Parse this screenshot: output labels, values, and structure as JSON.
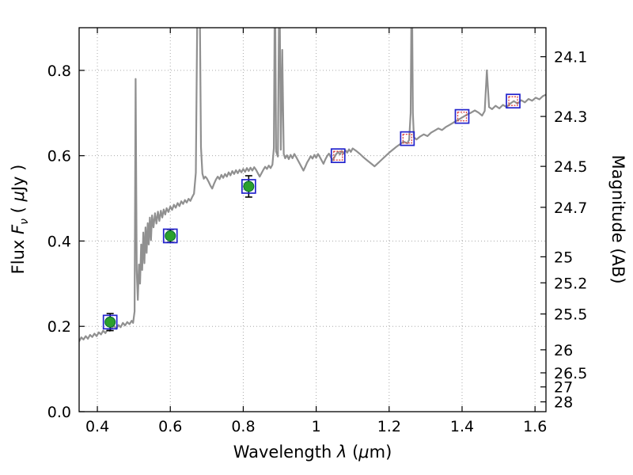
{
  "chart_data": {
    "type": "line+scatter",
    "title": "",
    "xlabel": "Wavelength λ (μm)",
    "ylabel_left": "Flux Fν ( μJy )",
    "ylabel_right": "Magnitude (AB)",
    "xlabel_parts": [
      "Wavelength ",
      "λ",
      " (",
      "μ",
      "m)"
    ],
    "ylabel_left_parts": [
      "Flux ",
      "F",
      "ν",
      " ( ",
      "μ",
      "Jy )"
    ],
    "xlim": [
      0.35,
      1.63
    ],
    "ylim": [
      0.0,
      0.9
    ],
    "grid": "dotted",
    "grid_color": "#aaaaaa",
    "frame_color": "#000000",
    "x_ticks": {
      "values": [
        0.4,
        0.6,
        0.8,
        1.0,
        1.2,
        1.4,
        1.6
      ],
      "labels": [
        "0.4",
        "0.6",
        "0.8",
        "1",
        "1.2",
        "1.4",
        "1.6"
      ]
    },
    "y_ticks_left": {
      "values": [
        0.0,
        0.2,
        0.4,
        0.6,
        0.8
      ],
      "labels": [
        "0.0",
        "0.2",
        "0.4",
        "0.6",
        "0.8"
      ]
    },
    "y_ticks_right": {
      "labels": [
        "24.1",
        "24.3",
        "24.5",
        "24.7",
        "25",
        "25.2",
        "25.5",
        "26",
        "26.5",
        "27",
        "28"
      ],
      "magnitudes": [
        24.1,
        24.3,
        24.5,
        24.7,
        25.0,
        25.2,
        25.5,
        26.0,
        26.5,
        27.0,
        28.0
      ],
      "flux_positions": [
        0.832,
        0.692,
        0.575,
        0.479,
        0.363,
        0.302,
        0.229,
        0.145,
        0.091,
        0.058,
        0.023
      ]
    },
    "spectrum": {
      "name": "model spectrum",
      "color": "#909090",
      "width": 2.2,
      "points": [
        [
          0.35,
          0.165
        ],
        [
          0.356,
          0.174
        ],
        [
          0.362,
          0.169
        ],
        [
          0.368,
          0.177
        ],
        [
          0.374,
          0.171
        ],
        [
          0.38,
          0.18
        ],
        [
          0.386,
          0.175
        ],
        [
          0.392,
          0.183
        ],
        [
          0.398,
          0.177
        ],
        [
          0.404,
          0.186
        ],
        [
          0.41,
          0.181
        ],
        [
          0.416,
          0.19
        ],
        [
          0.422,
          0.184
        ],
        [
          0.428,
          0.193
        ],
        [
          0.434,
          0.189
        ],
        [
          0.44,
          0.197
        ],
        [
          0.446,
          0.201
        ],
        [
          0.452,
          0.194
        ],
        [
          0.458,
          0.203
        ],
        [
          0.464,
          0.198
        ],
        [
          0.47,
          0.208
        ],
        [
          0.476,
          0.202
        ],
        [
          0.482,
          0.21
        ],
        [
          0.488,
          0.205
        ],
        [
          0.494,
          0.213
        ],
        [
          0.498,
          0.208
        ],
        [
          0.502,
          0.235
        ],
        [
          0.505,
          0.78
        ],
        [
          0.508,
          0.33
        ],
        [
          0.511,
          0.262
        ],
        [
          0.514,
          0.345
        ],
        [
          0.517,
          0.3
        ],
        [
          0.52,
          0.392
        ],
        [
          0.523,
          0.332
        ],
        [
          0.526,
          0.42
        ],
        [
          0.529,
          0.348
        ],
        [
          0.532,
          0.432
        ],
        [
          0.535,
          0.372
        ],
        [
          0.538,
          0.442
        ],
        [
          0.541,
          0.392
        ],
        [
          0.544,
          0.455
        ],
        [
          0.547,
          0.402
        ],
        [
          0.55,
          0.46
        ],
        [
          0.554,
          0.432
        ],
        [
          0.558,
          0.465
        ],
        [
          0.562,
          0.441
        ],
        [
          0.566,
          0.469
        ],
        [
          0.57,
          0.447
        ],
        [
          0.574,
          0.471
        ],
        [
          0.578,
          0.455
        ],
        [
          0.582,
          0.474
        ],
        [
          0.586,
          0.462
        ],
        [
          0.59,
          0.477
        ],
        [
          0.595,
          0.468
        ],
        [
          0.6,
          0.481
        ],
        [
          0.605,
          0.473
        ],
        [
          0.61,
          0.485
        ],
        [
          0.615,
          0.478
        ],
        [
          0.62,
          0.489
        ],
        [
          0.625,
          0.482
        ],
        [
          0.63,
          0.493
        ],
        [
          0.635,
          0.487
        ],
        [
          0.64,
          0.496
        ],
        [
          0.645,
          0.49
        ],
        [
          0.65,
          0.499
        ],
        [
          0.655,
          0.494
        ],
        [
          0.66,
          0.503
        ],
        [
          0.665,
          0.511
        ],
        [
          0.67,
          0.56
        ],
        [
          0.674,
          0.93
        ],
        [
          0.678,
          1.05
        ],
        [
          0.681,
          0.93
        ],
        [
          0.684,
          0.62
        ],
        [
          0.688,
          0.558
        ],
        [
          0.692,
          0.546
        ],
        [
          0.696,
          0.551
        ],
        [
          0.7,
          0.547
        ],
        [
          0.705,
          0.539
        ],
        [
          0.71,
          0.53
        ],
        [
          0.715,
          0.523
        ],
        [
          0.72,
          0.534
        ],
        [
          0.725,
          0.544
        ],
        [
          0.73,
          0.551
        ],
        [
          0.735,
          0.545
        ],
        [
          0.74,
          0.555
        ],
        [
          0.745,
          0.548
        ],
        [
          0.75,
          0.557
        ],
        [
          0.755,
          0.551
        ],
        [
          0.76,
          0.561
        ],
        [
          0.765,
          0.554
        ],
        [
          0.77,
          0.564
        ],
        [
          0.775,
          0.557
        ],
        [
          0.78,
          0.566
        ],
        [
          0.785,
          0.559
        ],
        [
          0.79,
          0.567
        ],
        [
          0.795,
          0.561
        ],
        [
          0.8,
          0.569
        ],
        [
          0.805,
          0.562
        ],
        [
          0.81,
          0.571
        ],
        [
          0.815,
          0.564
        ],
        [
          0.82,
          0.572
        ],
        [
          0.825,
          0.565
        ],
        [
          0.83,
          0.573
        ],
        [
          0.835,
          0.567
        ],
        [
          0.84,
          0.559
        ],
        [
          0.845,
          0.551
        ],
        [
          0.85,
          0.559
        ],
        [
          0.855,
          0.567
        ],
        [
          0.86,
          0.574
        ],
        [
          0.865,
          0.569
        ],
        [
          0.87,
          0.577
        ],
        [
          0.875,
          0.571
        ],
        [
          0.88,
          0.579
        ],
        [
          0.884,
          0.618
        ],
        [
          0.887,
          1.05
        ],
        [
          0.89,
          0.61
        ],
        [
          0.895,
          0.598
        ],
        [
          0.899,
          1.05
        ],
        [
          0.903,
          0.614
        ],
        [
          0.907,
          0.848
        ],
        [
          0.911,
          0.604
        ],
        [
          0.915,
          0.594
        ],
        [
          0.92,
          0.601
        ],
        [
          0.925,
          0.592
        ],
        [
          0.93,
          0.602
        ],
        [
          0.935,
          0.594
        ],
        [
          0.94,
          0.604
        ],
        [
          0.945,
          0.597
        ],
        [
          0.95,
          0.589
        ],
        [
          0.955,
          0.581
        ],
        [
          0.96,
          0.573
        ],
        [
          0.965,
          0.565
        ],
        [
          0.97,
          0.574
        ],
        [
          0.975,
          0.584
        ],
        [
          0.98,
          0.591
        ],
        [
          0.985,
          0.599
        ],
        [
          0.99,
          0.593
        ],
        [
          0.995,
          0.602
        ],
        [
          1.0,
          0.595
        ],
        [
          1.005,
          0.604
        ],
        [
          1.01,
          0.597
        ],
        [
          1.015,
          0.589
        ],
        [
          1.02,
          0.581
        ],
        [
          1.025,
          0.591
        ],
        [
          1.03,
          0.599
        ],
        [
          1.035,
          0.605
        ],
        [
          1.04,
          0.597
        ],
        [
          1.045,
          0.589
        ],
        [
          1.05,
          0.597
        ],
        [
          1.055,
          0.604
        ],
        [
          1.06,
          0.609
        ],
        [
          1.065,
          0.603
        ],
        [
          1.07,
          0.611
        ],
        [
          1.075,
          0.605
        ],
        [
          1.08,
          0.613
        ],
        [
          1.085,
          0.607
        ],
        [
          1.09,
          0.615
        ],
        [
          1.095,
          0.609
        ],
        [
          1.1,
          0.617
        ],
        [
          1.11,
          0.611
        ],
        [
          1.12,
          0.604
        ],
        [
          1.13,
          0.596
        ],
        [
          1.14,
          0.589
        ],
        [
          1.15,
          0.582
        ],
        [
          1.16,
          0.575
        ],
        [
          1.17,
          0.583
        ],
        [
          1.18,
          0.591
        ],
        [
          1.19,
          0.599
        ],
        [
          1.2,
          0.607
        ],
        [
          1.21,
          0.614
        ],
        [
          1.22,
          0.621
        ],
        [
          1.23,
          0.627
        ],
        [
          1.24,
          0.633
        ],
        [
          1.25,
          0.629
        ],
        [
          1.255,
          0.637
        ],
        [
          1.259,
          0.7
        ],
        [
          1.262,
          1.05
        ],
        [
          1.265,
          0.7
        ],
        [
          1.268,
          0.643
        ],
        [
          1.275,
          0.638
        ],
        [
          1.285,
          0.645
        ],
        [
          1.295,
          0.65
        ],
        [
          1.305,
          0.646
        ],
        [
          1.315,
          0.654
        ],
        [
          1.325,
          0.659
        ],
        [
          1.335,
          0.664
        ],
        [
          1.345,
          0.66
        ],
        [
          1.355,
          0.667
        ],
        [
          1.365,
          0.672
        ],
        [
          1.375,
          0.677
        ],
        [
          1.385,
          0.682
        ],
        [
          1.395,
          0.687
        ],
        [
          1.405,
          0.692
        ],
        [
          1.415,
          0.697
        ],
        [
          1.425,
          0.701
        ],
        [
          1.435,
          0.706
        ],
        [
          1.445,
          0.701
        ],
        [
          1.455,
          0.694
        ],
        [
          1.462,
          0.705
        ],
        [
          1.468,
          0.8
        ],
        [
          1.474,
          0.714
        ],
        [
          1.482,
          0.709
        ],
        [
          1.492,
          0.717
        ],
        [
          1.502,
          0.711
        ],
        [
          1.512,
          0.719
        ],
        [
          1.522,
          0.714
        ],
        [
          1.532,
          0.722
        ],
        [
          1.542,
          0.728
        ],
        [
          1.552,
          0.722
        ],
        [
          1.562,
          0.73
        ],
        [
          1.572,
          0.725
        ],
        [
          1.582,
          0.733
        ],
        [
          1.592,
          0.729
        ],
        [
          1.602,
          0.736
        ],
        [
          1.612,
          0.732
        ],
        [
          1.622,
          0.74
        ],
        [
          1.63,
          0.743
        ]
      ]
    },
    "photometry_observed": {
      "name": "observed photometry (filled green circles in blue squares, black error bars)",
      "fill_color": "#2ca02c",
      "edge_color": "#063",
      "square_color": "#2222cc",
      "errorbar_color": "#000000",
      "points": [
        {
          "x": 0.435,
          "y": 0.21,
          "yerr": 0.02
        },
        {
          "x": 0.6,
          "y": 0.412,
          "yerr": 0.015
        },
        {
          "x": 0.815,
          "y": 0.528,
          "yerr": 0.025
        }
      ]
    },
    "photometry_model": {
      "name": "model photometry (open blue squares with red inner squares)",
      "square_color": "#2222cc",
      "inner_color": "#dd4444",
      "points": [
        {
          "x": 1.06,
          "y": 0.6
        },
        {
          "x": 1.25,
          "y": 0.64
        },
        {
          "x": 1.4,
          "y": 0.692
        },
        {
          "x": 1.54,
          "y": 0.728
        }
      ]
    }
  }
}
